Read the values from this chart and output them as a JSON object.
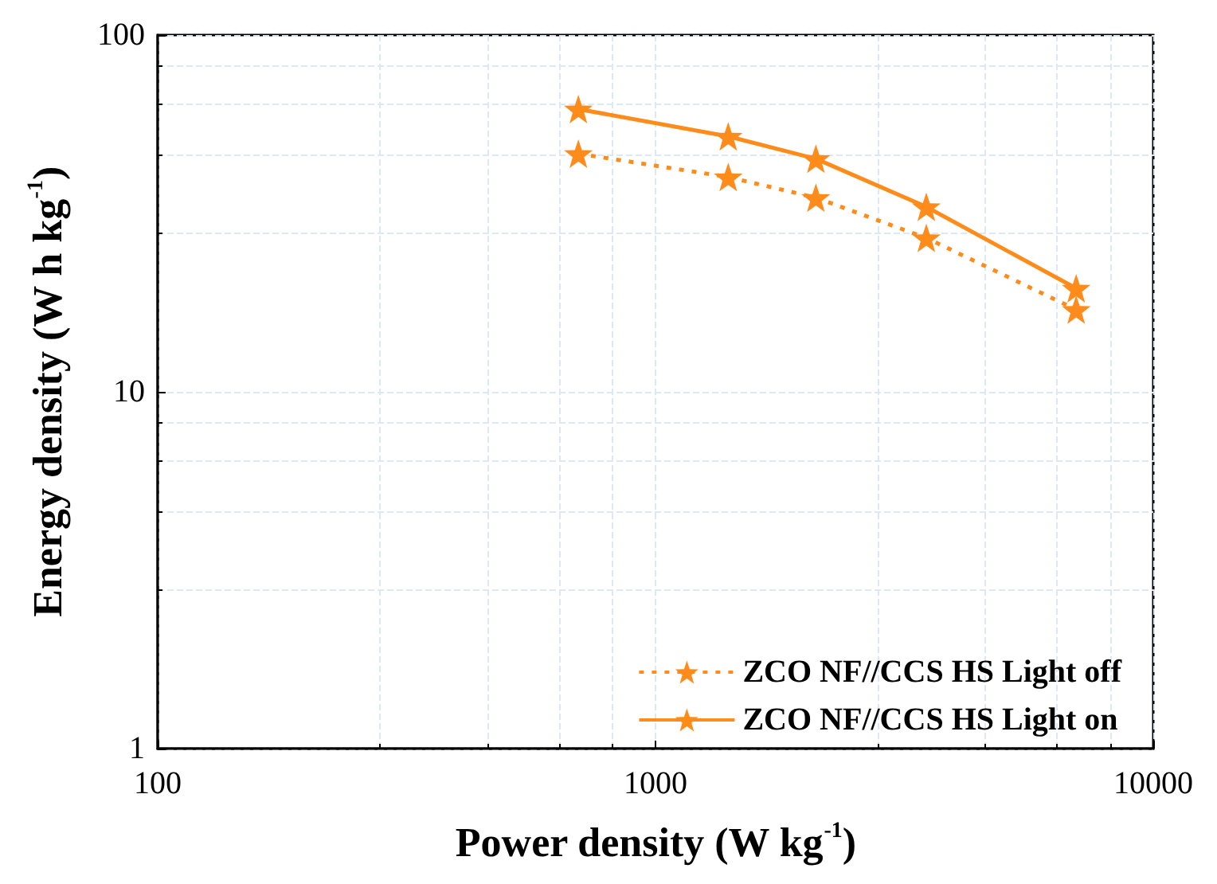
{
  "chart_data": {
    "type": "line",
    "xlabel": "Power density (W kg$^{-1}$)",
    "ylabel": "Energy density (W h kg$^{-1}$)",
    "x": [
      700,
      1400,
      2100,
      3500,
      7000
    ],
    "series": [
      {
        "name": "ZCO NF//CCS HS Light off",
        "color": "#ff8c1a",
        "line_style": "dotted",
        "values": [
          46.5,
          40,
          35,
          27,
          17
        ]
      },
      {
        "name": "ZCO NF//CCS HS Light on",
        "color": "#ff8c1a",
        "line_style": "solid",
        "values": [
          62,
          52,
          45,
          33,
          19.5
        ]
      }
    ],
    "log": "xy",
    "xlim": [
      100,
      10000
    ],
    "xticks": [
      100,
      1000,
      10000
    ],
    "ylim": [
      1,
      100
    ],
    "yticks": [
      1,
      10,
      100
    ],
    "grid": true,
    "legend": "bottom right",
    "marker": "star"
  }
}
